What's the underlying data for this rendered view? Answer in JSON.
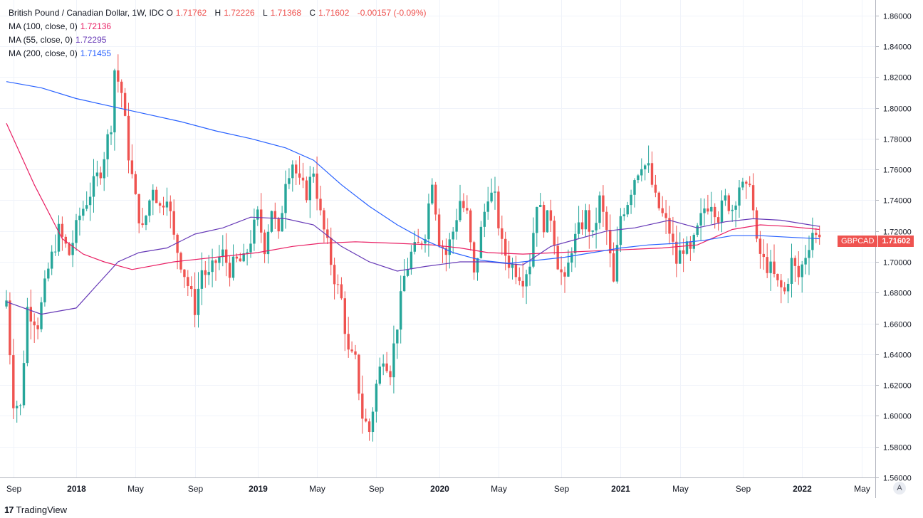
{
  "legend": {
    "title": "British Pound / Canadian Dollar, 1W, IDC",
    "open_label": "O",
    "open": "1.71762",
    "high_label": "H",
    "high": "1.72226",
    "low_label": "L",
    "low": "1.71368",
    "close_label": "C",
    "close": "1.71602",
    "change": "-0.00157 (-0.09%)",
    "ma100_label": "MA (100, close, 0)",
    "ma100_value": "1.72136",
    "ma55_label": "MA (55, close, 0)",
    "ma55_value": "1.72295",
    "ma200_label": "MA (200, close, 0)",
    "ma200_value": "1.71455"
  },
  "price_tag": {
    "symbol": "GBPCAD",
    "value": "1.71602"
  },
  "footer": {
    "brand": "TradingView",
    "logo_mark": "17",
    "scale_button": "A"
  },
  "colors": {
    "up": "#26a69a",
    "down": "#ef5350",
    "ma100": "#e91e63",
    "ma55": "#673ab7",
    "ma200": "#2962ff",
    "grid": "#f0f3fa"
  },
  "chart_data": {
    "type": "candlestick",
    "title": "British Pound / Canadian Dollar, 1W, IDC",
    "ylim": [
      1.56,
      1.87
    ],
    "y_ticks": [
      "1.86000",
      "1.84000",
      "1.82000",
      "1.80000",
      "1.78000",
      "1.76000",
      "1.74000",
      "1.72000",
      "1.70000",
      "1.68000",
      "1.66000",
      "1.64000",
      "1.62000",
      "1.60000",
      "1.58000",
      "1.56000"
    ],
    "x_labels": [
      {
        "i": 2,
        "label": "Sep"
      },
      {
        "i": 20,
        "label": "2018"
      },
      {
        "i": 37,
        "label": "May"
      },
      {
        "i": 54,
        "label": "Sep"
      },
      {
        "i": 72,
        "label": "2019"
      },
      {
        "i": 89,
        "label": "May"
      },
      {
        "i": 106,
        "label": "Sep"
      },
      {
        "i": 124,
        "label": "2020"
      },
      {
        "i": 141,
        "label": "May"
      },
      {
        "i": 159,
        "label": "Sep"
      },
      {
        "i": 176,
        "label": "2021"
      },
      {
        "i": 193,
        "label": "May"
      },
      {
        "i": 211,
        "label": "Sep"
      },
      {
        "i": 228,
        "label": "2022"
      },
      {
        "i": 245,
        "label": "May"
      }
    ],
    "close_path": [
      [
        0,
        1.675
      ],
      [
        2,
        1.61
      ],
      [
        4,
        1.605
      ],
      [
        6,
        1.67
      ],
      [
        9,
        1.66
      ],
      [
        12,
        1.695
      ],
      [
        15,
        1.72
      ],
      [
        18,
        1.705
      ],
      [
        21,
        1.73
      ],
      [
        24,
        1.745
      ],
      [
        27,
        1.76
      ],
      [
        30,
        1.79
      ],
      [
        31,
        1.825
      ],
      [
        33,
        1.81
      ],
      [
        35,
        1.77
      ],
      [
        37,
        1.74
      ],
      [
        39,
        1.72
      ],
      [
        42,
        1.75
      ],
      [
        44,
        1.735
      ],
      [
        46,
        1.745
      ],
      [
        48,
        1.715
      ],
      [
        50,
        1.7
      ],
      [
        52,
        1.685
      ],
      [
        54,
        1.67
      ],
      [
        56,
        1.695
      ],
      [
        58,
        1.69
      ],
      [
        60,
        1.7
      ],
      [
        62,
        1.705
      ],
      [
        64,
        1.695
      ],
      [
        66,
        1.7
      ],
      [
        68,
        1.7
      ],
      [
        70,
        1.715
      ],
      [
        72,
        1.73
      ],
      [
        74,
        1.71
      ],
      [
        76,
        1.735
      ],
      [
        78,
        1.715
      ],
      [
        80,
        1.755
      ],
      [
        82,
        1.765
      ],
      [
        84,
        1.75
      ],
      [
        86,
        1.745
      ],
      [
        88,
        1.76
      ],
      [
        90,
        1.73
      ],
      [
        92,
        1.71
      ],
      [
        94,
        1.69
      ],
      [
        96,
        1.675
      ],
      [
        98,
        1.64
      ],
      [
        100,
        1.635
      ],
      [
        102,
        1.6
      ],
      [
        104,
        1.59
      ],
      [
        106,
        1.62
      ],
      [
        108,
        1.64
      ],
      [
        110,
        1.63
      ],
      [
        112,
        1.66
      ],
      [
        114,
        1.69
      ],
      [
        116,
        1.705
      ],
      [
        118,
        1.71
      ],
      [
        120,
        1.72
      ],
      [
        122,
        1.755
      ],
      [
        124,
        1.715
      ],
      [
        126,
        1.705
      ],
      [
        128,
        1.72
      ],
      [
        130,
        1.74
      ],
      [
        132,
        1.73
      ],
      [
        134,
        1.69
      ],
      [
        136,
        1.72
      ],
      [
        138,
        1.745
      ],
      [
        140,
        1.74
      ],
      [
        142,
        1.71
      ],
      [
        144,
        1.7
      ],
      [
        146,
        1.695
      ],
      [
        148,
        1.69
      ],
      [
        150,
        1.7
      ],
      [
        152,
        1.74
      ],
      [
        154,
        1.725
      ],
      [
        156,
        1.73
      ],
      [
        158,
        1.7
      ],
      [
        160,
        1.685
      ],
      [
        162,
        1.71
      ],
      [
        164,
        1.72
      ],
      [
        166,
        1.73
      ],
      [
        168,
        1.715
      ],
      [
        170,
        1.74
      ],
      [
        172,
        1.72
      ],
      [
        174,
        1.685
      ],
      [
        176,
        1.73
      ],
      [
        178,
        1.74
      ],
      [
        180,
        1.755
      ],
      [
        182,
        1.765
      ],
      [
        184,
        1.76
      ],
      [
        186,
        1.74
      ],
      [
        188,
        1.73
      ],
      [
        190,
        1.72
      ],
      [
        192,
        1.7
      ],
      [
        194,
        1.71
      ],
      [
        196,
        1.705
      ],
      [
        198,
        1.72
      ],
      [
        200,
        1.735
      ],
      [
        202,
        1.74
      ],
      [
        204,
        1.73
      ],
      [
        206,
        1.74
      ],
      [
        208,
        1.735
      ],
      [
        210,
        1.75
      ],
      [
        212,
        1.745
      ],
      [
        213,
        1.755
      ],
      [
        215,
        1.71
      ],
      [
        217,
        1.7
      ],
      [
        219,
        1.695
      ],
      [
        221,
        1.685
      ],
      [
        223,
        1.68
      ],
      [
        225,
        1.7
      ],
      [
        227,
        1.69
      ],
      [
        229,
        1.705
      ],
      [
        231,
        1.72
      ],
      [
        233,
        1.712
      ]
    ],
    "ma100": [
      [
        0,
        1.79
      ],
      [
        8,
        1.75
      ],
      [
        16,
        1.715
      ],
      [
        22,
        1.705
      ],
      [
        28,
        1.7
      ],
      [
        36,
        1.695
      ],
      [
        48,
        1.7
      ],
      [
        60,
        1.703
      ],
      [
        72,
        1.706
      ],
      [
        82,
        1.71
      ],
      [
        90,
        1.712
      ],
      [
        100,
        1.713
      ],
      [
        112,
        1.712
      ],
      [
        122,
        1.711
      ],
      [
        130,
        1.709
      ],
      [
        138,
        1.706
      ],
      [
        148,
        1.705
      ],
      [
        158,
        1.706
      ],
      [
        168,
        1.707
      ],
      [
        178,
        1.708
      ],
      [
        188,
        1.709
      ],
      [
        198,
        1.711
      ],
      [
        208,
        1.721
      ],
      [
        216,
        1.724
      ],
      [
        224,
        1.723
      ],
      [
        233,
        1.721
      ]
    ],
    "ma55": [
      [
        0,
        1.674
      ],
      [
        10,
        1.666
      ],
      [
        20,
        1.67
      ],
      [
        26,
        1.685
      ],
      [
        32,
        1.7
      ],
      [
        38,
        1.706
      ],
      [
        46,
        1.709
      ],
      [
        54,
        1.718
      ],
      [
        62,
        1.722
      ],
      [
        70,
        1.729
      ],
      [
        80,
        1.728
      ],
      [
        88,
        1.724
      ],
      [
        96,
        1.71
      ],
      [
        104,
        1.7
      ],
      [
        112,
        1.694
      ],
      [
        120,
        1.697
      ],
      [
        130,
        1.7
      ],
      [
        138,
        1.7
      ],
      [
        148,
        1.698
      ],
      [
        156,
        1.71
      ],
      [
        164,
        1.715
      ],
      [
        172,
        1.72
      ],
      [
        180,
        1.722
      ],
      [
        190,
        1.727
      ],
      [
        198,
        1.722
      ],
      [
        206,
        1.726
      ],
      [
        214,
        1.728
      ],
      [
        222,
        1.727
      ],
      [
        233,
        1.723
      ]
    ],
    "ma200": [
      [
        0,
        1.817
      ],
      [
        10,
        1.813
      ],
      [
        20,
        1.806
      ],
      [
        30,
        1.801
      ],
      [
        40,
        1.796
      ],
      [
        50,
        1.791
      ],
      [
        60,
        1.785
      ],
      [
        70,
        1.78
      ],
      [
        80,
        1.774
      ],
      [
        88,
        1.766
      ],
      [
        96,
        1.75
      ],
      [
        104,
        1.736
      ],
      [
        112,
        1.724
      ],
      [
        120,
        1.714
      ],
      [
        128,
        1.706
      ],
      [
        136,
        1.701
      ],
      [
        144,
        1.699
      ],
      [
        152,
        1.701
      ],
      [
        160,
        1.703
      ],
      [
        168,
        1.706
      ],
      [
        176,
        1.709
      ],
      [
        184,
        1.711
      ],
      [
        192,
        1.712
      ],
      [
        200,
        1.714
      ],
      [
        208,
        1.717
      ],
      [
        216,
        1.717
      ],
      [
        224,
        1.716
      ],
      [
        233,
        1.715
      ]
    ],
    "last_close": 1.71602
  }
}
